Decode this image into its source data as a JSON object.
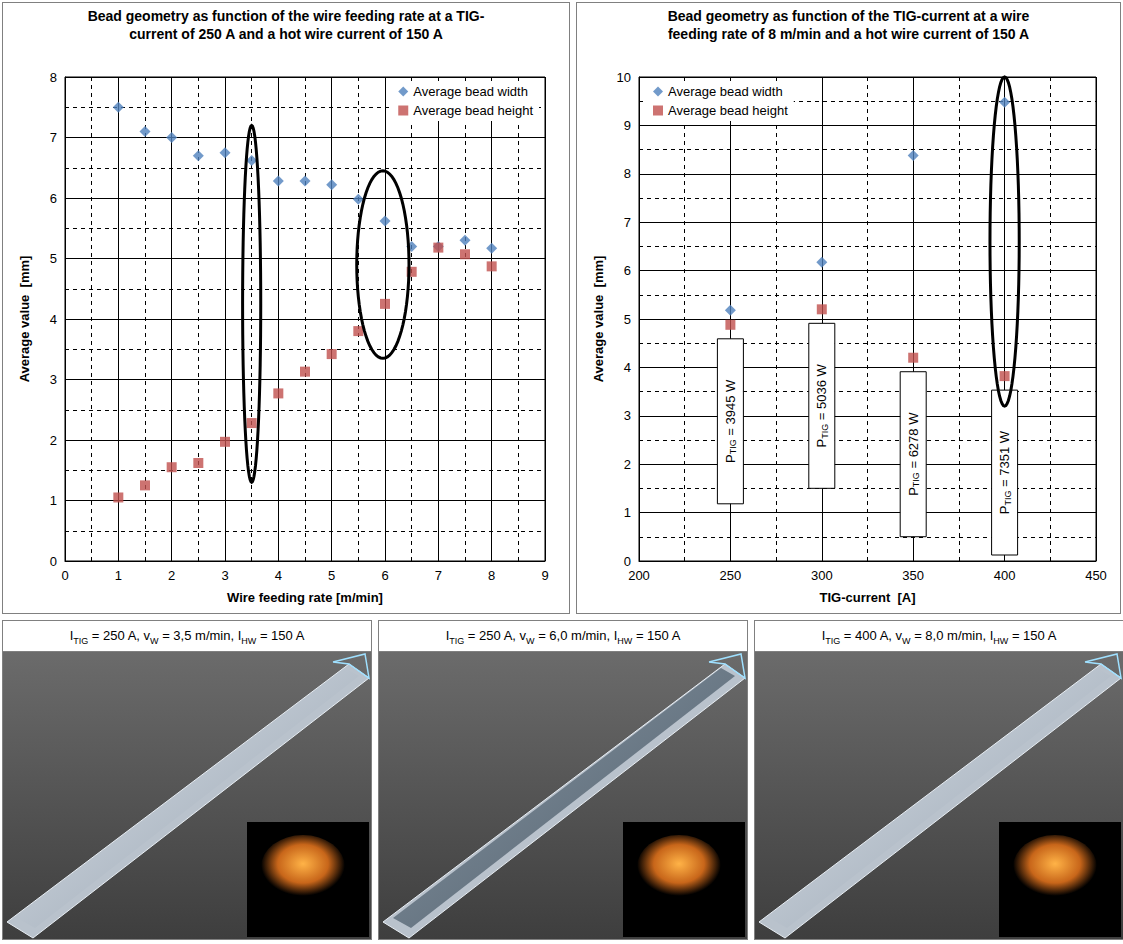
{
  "chart_data": [
    {
      "type": "scatter",
      "title": "Bead geometry as function of the wire feeding rate at a TIG-current of 250 A and a hot wire current of 150 A",
      "x_label": "Wire feeding rate [m/min]",
      "y_label": "Average value  [mm]",
      "x": [
        1,
        1.5,
        2,
        2.5,
        3,
        3.5,
        4,
        4.5,
        5,
        5.5,
        6,
        6.5,
        7,
        7.5,
        8
      ],
      "series": [
        {
          "name": "Average bead width",
          "color": "#4f81bd",
          "marker": "diamond",
          "values": [
            7.5,
            7.1,
            7.0,
            6.7,
            6.75,
            6.62,
            6.28,
            6.28,
            6.22,
            5.98,
            5.62,
            5.2,
            5.2,
            5.3,
            5.17
          ]
        },
        {
          "name": "Average bead height",
          "color": "#c0504d",
          "marker": "square",
          "values": [
            1.05,
            1.25,
            1.55,
            1.62,
            1.97,
            2.28,
            2.77,
            3.13,
            3.42,
            3.8,
            4.25,
            4.78,
            5.18,
            5.07,
            4.87
          ]
        }
      ],
      "xlim": [
        0,
        9
      ],
      "xticks": [
        0,
        1,
        2,
        3,
        4,
        5,
        6,
        7,
        8,
        9
      ],
      "ylim": [
        0,
        8
      ],
      "yticks": [
        0,
        1,
        2,
        3,
        4,
        5,
        6,
        7,
        8
      ],
      "grid": true,
      "legend": "top right",
      "highlights": [
        {
          "xrange": [
            3.33,
            3.67
          ],
          "yrange": [
            1.3,
            7.2
          ]
        },
        {
          "xrange": [
            5.47,
            6.45
          ],
          "yrange": [
            3.35,
            6.45
          ]
        }
      ]
    },
    {
      "type": "scatter",
      "title": "Bead geometry as function of the TIG-current at a wire feeding rate of 8 m/min and a hot wire current of 150 A",
      "x_label": "TIG-current  [A]",
      "y_label": "Average value  [mm]",
      "x": [
        250,
        300,
        350,
        400
      ],
      "series": [
        {
          "name": "Average bead width",
          "color": "#4f81bd",
          "marker": "diamond",
          "values": [
            5.18,
            6.17,
            8.38,
            9.48
          ]
        },
        {
          "name": "Average bead height",
          "color": "#c0504d",
          "marker": "square",
          "values": [
            4.88,
            5.2,
            4.2,
            3.82
          ]
        }
      ],
      "xlim": [
        200,
        450
      ],
      "xticks": [
        200,
        250,
        300,
        350,
        400,
        450
      ],
      "ylim": [
        0,
        10
      ],
      "yticks": [
        0,
        1,
        2,
        3,
        4,
        5,
        6,
        7,
        8,
        9,
        10
      ],
      "grid": true,
      "legend": "top left",
      "annotations": [
        {
          "x": 250,
          "parts": [
            {
              "text": "P"
            },
            {
              "sub": "TIG"
            },
            {
              "text": " = 3945 W"
            }
          ]
        },
        {
          "x": 300,
          "parts": [
            {
              "text": "P"
            },
            {
              "sub": "TIG"
            },
            {
              "text": " = 5036 W"
            }
          ]
        },
        {
          "x": 350,
          "parts": [
            {
              "text": "P"
            },
            {
              "sub": "TIG"
            },
            {
              "text": " = 6278 W"
            }
          ]
        },
        {
          "x": 400,
          "parts": [
            {
              "text": "P"
            },
            {
              "sub": "TIG"
            },
            {
              "text": " = 7351 W"
            }
          ]
        }
      ],
      "highlights": [
        {
          "xrange": [
            392,
            408
          ],
          "yrange": [
            3.2,
            10.0
          ]
        }
      ]
    }
  ],
  "photos": [
    {
      "caption": [
        {
          "text": "I"
        },
        {
          "sub": "TIG"
        },
        {
          "text": " = 250 A, v"
        },
        {
          "sub": "W"
        },
        {
          "text": " = 3,5 m/min, I"
        },
        {
          "sub": "HW"
        },
        {
          "text": " = 150 A"
        }
      ]
    },
    {
      "caption": [
        {
          "text": "I"
        },
        {
          "sub": "TIG"
        },
        {
          "text": " = 250 A, v"
        },
        {
          "sub": "W"
        },
        {
          "text": " = 6,0 m/min, I"
        },
        {
          "sub": "HW"
        },
        {
          "text": " = 150 A"
        }
      ]
    },
    {
      "caption": [
        {
          "text": "I"
        },
        {
          "sub": "TIG"
        },
        {
          "text": " = 400 A, v"
        },
        {
          "sub": "W"
        },
        {
          "text": " = 8,0 m/min, I"
        },
        {
          "sub": "HW"
        },
        {
          "text": " = 150 A"
        }
      ]
    }
  ]
}
